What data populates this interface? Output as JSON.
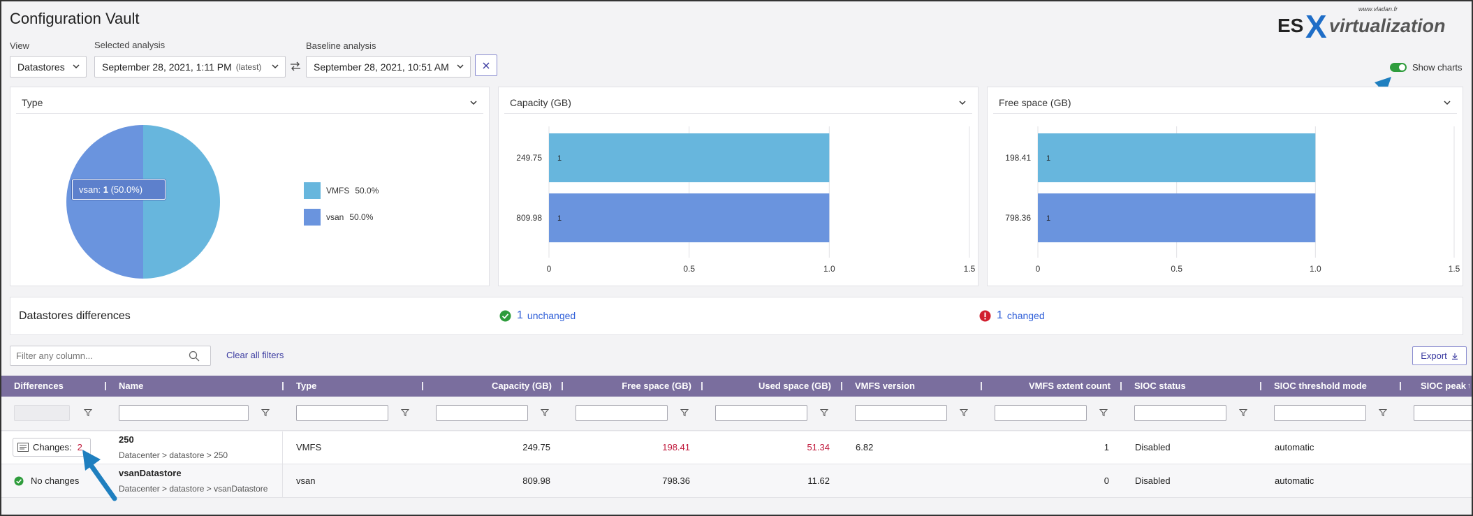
{
  "title": "Configuration Vault",
  "logo": {
    "es": "ES",
    "x": "X",
    "rest": "virtualization",
    "url": "www.vladan.fr"
  },
  "controls": {
    "view_label": "View",
    "view_value": "Datastores",
    "selected_label": "Selected analysis",
    "selected_value": "September 28, 2021, 1:11 PM",
    "selected_tag": "(latest)",
    "baseline_label": "Baseline analysis",
    "baseline_value": "September 28, 2021, 10:51 AM",
    "show_charts_label": "Show charts",
    "show_charts_on": true
  },
  "colors": {
    "vmfs": "#67b6dd",
    "vsan": "#6a94de",
    "header": "#7a6e9e",
    "accent": "#3a3aa0",
    "changed": "#c0173a",
    "ok": "#2e9c3c"
  },
  "chart_data": [
    {
      "type": "pie",
      "title": "Type",
      "categories": [
        "VMFS",
        "vsan"
      ],
      "values": [
        1,
        1
      ],
      "percent_labels": [
        "50.0%",
        "50.0%"
      ],
      "tooltip": {
        "name": "vsan:",
        "value": "1",
        "pct": "(50.0%)"
      },
      "legend": "right"
    },
    {
      "type": "bar",
      "orientation": "horizontal",
      "title": "Capacity (GB)",
      "categories": [
        "249.75",
        "809.98"
      ],
      "values": [
        1,
        1
      ],
      "value_labels": [
        "1",
        "1"
      ],
      "xlim": [
        0,
        1.5
      ],
      "xticks": [
        "0",
        "0.5",
        "1.0",
        "1.5"
      ]
    },
    {
      "type": "bar",
      "orientation": "horizontal",
      "title": "Free space (GB)",
      "categories": [
        "198.41",
        "798.36"
      ],
      "values": [
        1,
        1
      ],
      "value_labels": [
        "1",
        "1"
      ],
      "xlim": [
        0,
        1.5
      ],
      "xticks": [
        "0",
        "0.5",
        "1.0",
        "1.5"
      ]
    }
  ],
  "differences": {
    "title": "Datastores differences",
    "unchanged_count": "1",
    "unchanged_label": "unchanged",
    "changed_count": "1",
    "changed_label": "changed"
  },
  "filter_placeholder": "Filter any column...",
  "clear_filters": "Clear all filters",
  "export_label": "Export",
  "columns": [
    "Differences",
    "Name",
    "Type",
    "Capacity (GB)",
    "Free space (GB)",
    "Used space (GB)",
    "VMFS version",
    "VMFS extent count",
    "SIOC status",
    "SIOC threshold mode",
    "SIOC peak th"
  ],
  "rows": [
    {
      "diff_label": "Changes:",
      "diff_count": "2",
      "name": "250",
      "path": "Datacenter > datastore > 250",
      "type": "VMFS",
      "capacity": "249.75",
      "free": "198.41",
      "used": "51.34",
      "vmfs_version": "6.82",
      "extent_count": "1",
      "sioc_status": "Disabled",
      "sioc_mode": "automatic"
    },
    {
      "diff_label": "No changes",
      "name": "vsanDatastore",
      "path": "Datacenter > datastore > vsanDatastore",
      "type": "vsan",
      "capacity": "809.98",
      "free": "798.36",
      "used": "11.62",
      "vmfs_version": "",
      "extent_count": "0",
      "sioc_status": "Disabled",
      "sioc_mode": "automatic"
    }
  ]
}
